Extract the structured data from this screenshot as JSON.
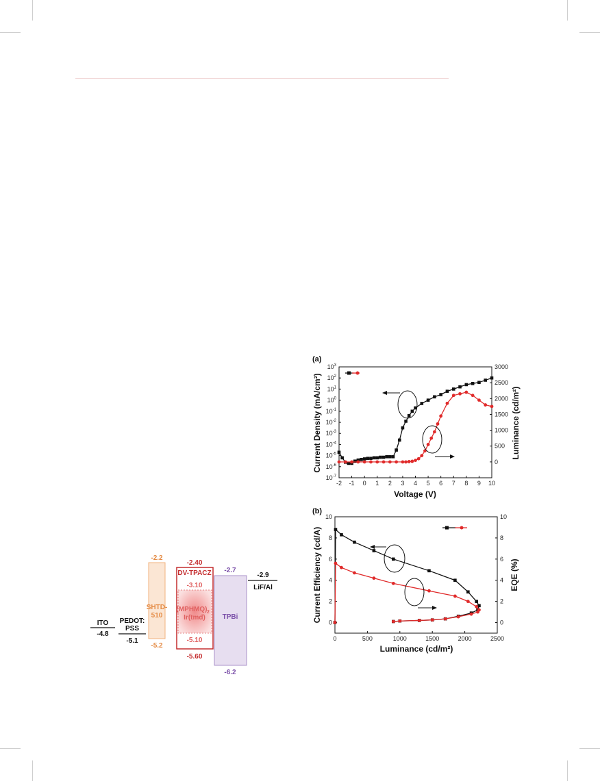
{
  "energy_diagram": {
    "layers": [
      {
        "name": "ITO",
        "top_text": "",
        "bottom_text": "-4.8",
        "color": "#111111"
      },
      {
        "name": "PEDOT:",
        "name2": "PSS",
        "bottom_text": "-5.1",
        "color": "#111111"
      },
      {
        "name": "SHTD-",
        "name2": "510",
        "top_text": "-2.2",
        "bottom_text": "-5.2",
        "color": "#e48a43"
      },
      {
        "name": "DV-TPACZ",
        "top_text": "-2.40",
        "bottom_text": "-5.60",
        "color": "#c42d2f"
      },
      {
        "name": "(MPHMQ)",
        "sub": "2",
        "name2": "Ir(tmd)",
        "top_text": "-3.10",
        "bottom_text": "-5.10",
        "color": "#e06060"
      },
      {
        "name": "TPBi",
        "top_text": "-2.7",
        "bottom_text": "-6.2",
        "color": "#7a4fa8"
      },
      {
        "name": "LiF/Al",
        "top_text": "-2.9",
        "color": "#111111"
      }
    ]
  },
  "chart_data": [
    {
      "panel": "(a)",
      "type": "line",
      "xlabel": "Voltage (V)",
      "ylabel_left": "Current Density (mA/cm²)",
      "ylabel_right": "Luminance (cd/m²)",
      "xlim": [
        -2,
        10
      ],
      "xticks": [
        "-2",
        "-1",
        "0",
        "1",
        "2",
        "3",
        "4",
        "5",
        "6",
        "7",
        "8",
        "9",
        "10"
      ],
      "ylim_left_log_exponent": [
        -7,
        3
      ],
      "yticks_left_exponents": [
        "3",
        "2",
        "1",
        "0",
        "-1",
        "-2",
        "-3",
        "-4",
        "-5",
        "-6",
        "-7"
      ],
      "ylim_right": [
        -500,
        3000
      ],
      "yticks_right": [
        "3000",
        "2500",
        "2000",
        "1500",
        "1000",
        "500",
        "0"
      ],
      "series": [
        {
          "axis": "left",
          "color": "#111111",
          "marker": "square",
          "x": [
            -2.0,
            -1.75,
            -1.5,
            -1.25,
            -1.0,
            -0.75,
            -0.5,
            -0.25,
            0.0,
            0.25,
            0.5,
            0.75,
            1.0,
            1.25,
            1.5,
            1.75,
            2.0,
            2.25,
            2.5,
            2.75,
            3.0,
            3.25,
            3.5,
            3.75,
            4.0,
            4.5,
            5.0,
            5.5,
            6.0,
            6.5,
            7.0,
            7.5,
            8.0,
            8.5,
            9.0,
            9.5,
            10.0
          ],
          "log10_y": [
            -4.7,
            -5.2,
            -5.6,
            -5.7,
            -5.7,
            -5.5,
            -5.4,
            -5.35,
            -5.3,
            -5.25,
            -5.25,
            -5.2,
            -5.2,
            -5.15,
            -5.15,
            -5.1,
            -5.1,
            -5.1,
            -4.5,
            -3.6,
            -2.5,
            -1.9,
            -1.4,
            -1.0,
            -0.7,
            -0.3,
            0.0,
            0.3,
            0.5,
            0.8,
            1.0,
            1.2,
            1.4,
            1.5,
            1.6,
            1.8,
            2.0
          ]
        },
        {
          "axis": "right",
          "color": "#e02a2a",
          "marker": "circle",
          "x": [
            -2.0,
            -1.5,
            -1.0,
            -0.5,
            0.0,
            0.5,
            1.0,
            1.5,
            2.0,
            2.5,
            3.0,
            3.25,
            3.5,
            3.75,
            4.0,
            4.25,
            4.5,
            4.75,
            5.0,
            5.25,
            5.5,
            5.75,
            6.0,
            6.5,
            7.0,
            7.5,
            8.0,
            8.5,
            9.0,
            9.5,
            10.0
          ],
          "y": [
            0,
            0,
            0,
            0,
            0,
            0,
            0,
            0,
            0,
            0,
            0,
            0,
            10,
            20,
            50,
            100,
            200,
            350,
            550,
            750,
            950,
            1200,
            1450,
            1850,
            2100,
            2150,
            2200,
            2100,
            1950,
            1800,
            1750
          ]
        }
      ]
    },
    {
      "panel": "(b)",
      "type": "line",
      "xlabel": "Luminance (cd/m²)",
      "ylabel_left": "Current Efficiency (cd/A)",
      "ylabel_right": "EQE (%)",
      "xlim": [
        0,
        2500
      ],
      "xticks": [
        "0",
        "500",
        "1000",
        "1500",
        "2000",
        "2500"
      ],
      "ylim_left": [
        -1,
        10
      ],
      "yticks_left": [
        "10",
        "8",
        "6",
        "4",
        "2",
        "0"
      ],
      "ylim_right": [
        -1,
        10
      ],
      "yticks_right": [
        "10",
        "8",
        "6",
        "4",
        "2",
        "0"
      ],
      "series": [
        {
          "axis": "left",
          "color": "#111111",
          "marker": "square",
          "points": [
            [
              0,
              0
            ],
            [
              10,
              8.8
            ],
            [
              100,
              8.3
            ],
            [
              300,
              7.6
            ],
            [
              600,
              6.8
            ],
            [
              900,
              6.0
            ],
            [
              1450,
              4.9
            ],
            [
              1850,
              4.0
            ],
            [
              2050,
              2.9
            ],
            [
              2180,
              2.0
            ],
            [
              2220,
              1.6
            ],
            [
              2200,
              1.2
            ],
            [
              2100,
              0.9
            ],
            [
              1900,
              0.6
            ],
            [
              1700,
              0.35
            ],
            [
              1500,
              0.25
            ],
            [
              1300,
              0.2
            ],
            [
              1000,
              0.15
            ],
            [
              900,
              0.1
            ]
          ]
        },
        {
          "axis": "right",
          "color": "#e02a2a",
          "marker": "circle",
          "points": [
            [
              0,
              0
            ],
            [
              10,
              5.6
            ],
            [
              100,
              5.2
            ],
            [
              300,
              4.7
            ],
            [
              600,
              4.2
            ],
            [
              900,
              3.7
            ],
            [
              1450,
              3.0
            ],
            [
              1850,
              2.5
            ],
            [
              2050,
              2.0
            ],
            [
              2180,
              1.5
            ],
            [
              2220,
              1.2
            ],
            [
              2200,
              1.0
            ],
            [
              2100,
              0.8
            ],
            [
              1900,
              0.55
            ],
            [
              1700,
              0.35
            ],
            [
              1500,
              0.25
            ],
            [
              1300,
              0.2
            ],
            [
              1000,
              0.15
            ],
            [
              900,
              0.1
            ]
          ]
        }
      ]
    }
  ]
}
